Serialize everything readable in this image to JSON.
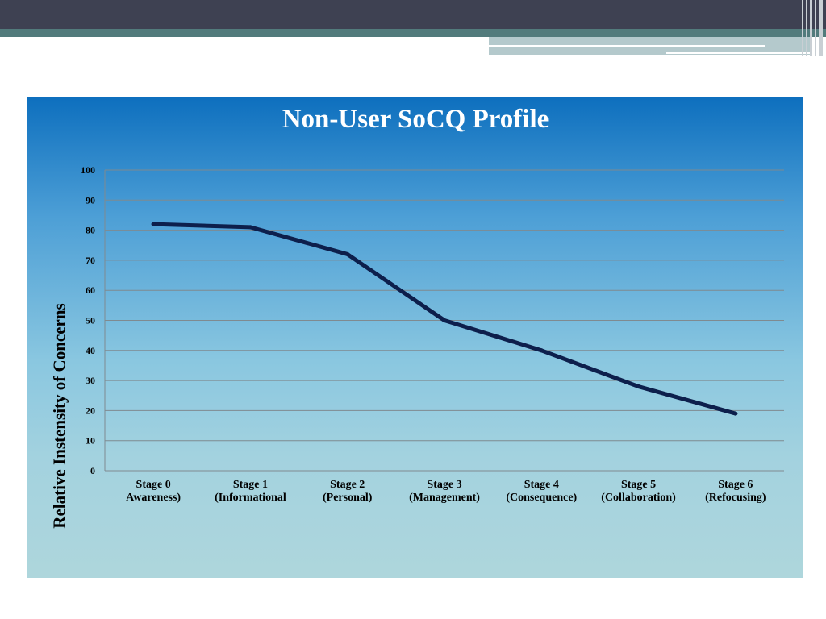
{
  "slide": {
    "colors": {
      "header_dark": "#3e4152",
      "header_teal": "#527b7c",
      "panel_top": "#0d6fbe",
      "panel_bottom": "#aed6dc",
      "line": "#0d1f4c"
    }
  },
  "chart_data": {
    "type": "line",
    "title": "Non-User SoCQ Profile",
    "xlabel": "",
    "ylabel": "Relative Instensity of Concerns",
    "ylim": [
      0,
      100
    ],
    "yticks": [
      0,
      10,
      20,
      30,
      40,
      50,
      60,
      70,
      80,
      90,
      100
    ],
    "grid": true,
    "categories": [
      [
        "Stage 0",
        "Awareness)"
      ],
      [
        "Stage 1",
        "(Informational"
      ],
      [
        "Stage 2",
        "(Personal)"
      ],
      [
        "Stage 3",
        "(Management)"
      ],
      [
        "Stage 4",
        "(Consequence)"
      ],
      [
        "Stage 5",
        "(Collaboration)"
      ],
      [
        "Stage 6",
        "(Refocusing)"
      ]
    ],
    "series": [
      {
        "values": [
          82,
          81,
          72,
          50,
          40,
          28,
          19
        ]
      }
    ]
  }
}
